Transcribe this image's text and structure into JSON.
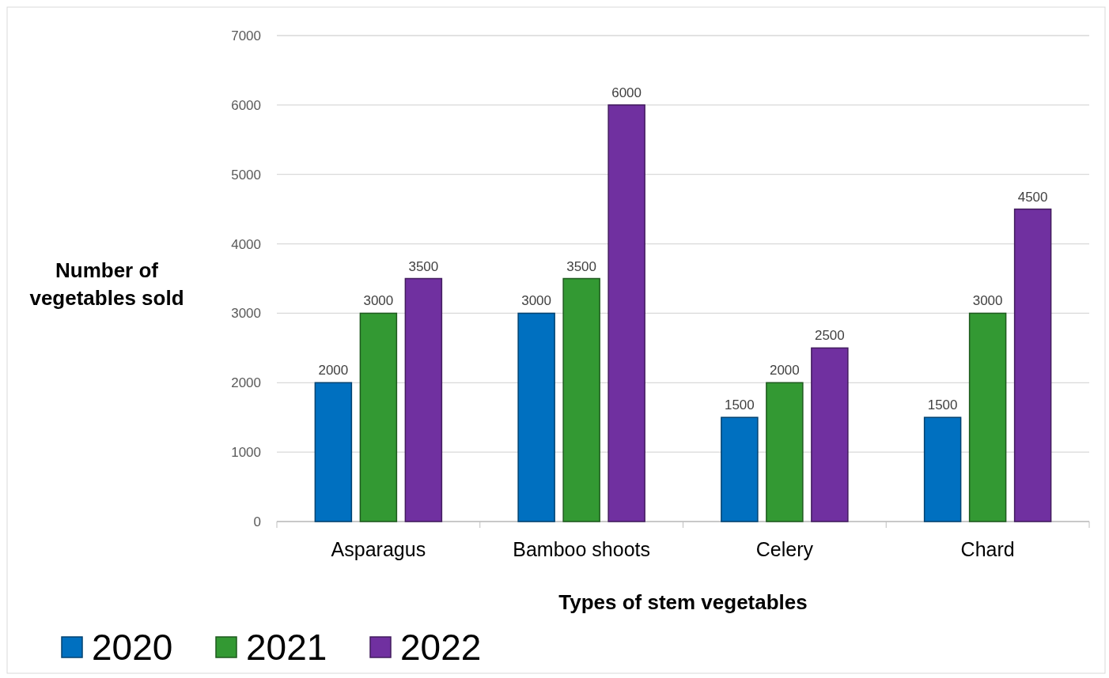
{
  "chart_data": {
    "type": "bar",
    "xlabel": "Types of stem vegetables",
    "ylabel": "Number of vegetables sold",
    "categories": [
      "Asparagus",
      "Bamboo shoots",
      "Celery",
      "Chard"
    ],
    "series": [
      {
        "name": "2020",
        "color": "#0070c0",
        "values": [
          2000,
          3000,
          1500,
          1500
        ]
      },
      {
        "name": "2021",
        "color": "#339933",
        "values": [
          3000,
          3500,
          2000,
          3000
        ]
      },
      {
        "name": "2022",
        "color": "#7030a0",
        "values": [
          3500,
          6000,
          2500,
          4500
        ]
      }
    ],
    "ylim": [
      0,
      7000
    ],
    "yticks": [
      0,
      1000,
      2000,
      3000,
      4000,
      5000,
      6000,
      7000
    ],
    "grid": "y",
    "legend": "bottom",
    "data_labels": true
  }
}
